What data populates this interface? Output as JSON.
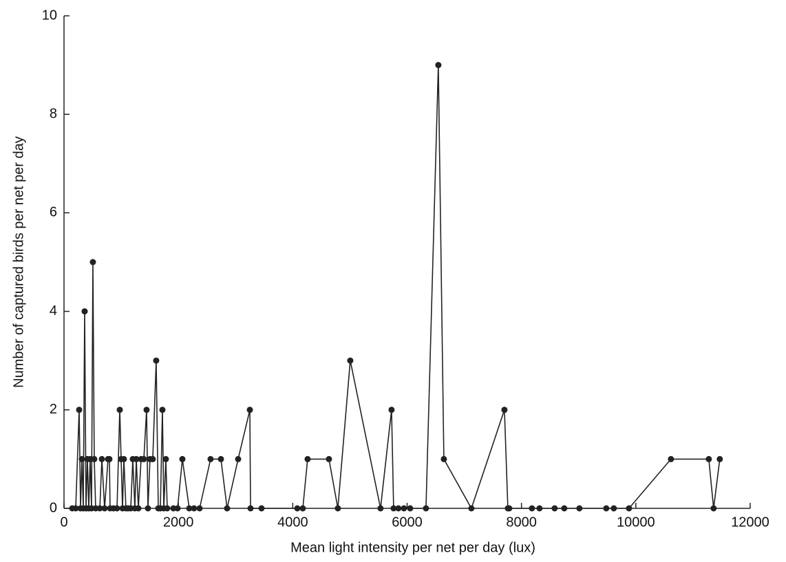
{
  "chart_data": {
    "type": "line",
    "x_label": "Mean light intensity per net per day (lux)",
    "y_label": "Number of captured birds per net per day",
    "x": [
      144,
      205,
      265,
      289,
      313,
      337,
      361,
      385,
      409,
      433,
      457,
      481,
      505,
      529,
      554,
      626,
      662,
      710,
      770,
      794,
      806,
      866,
      927,
      975,
      999,
      1023,
      1047,
      1083,
      1119,
      1167,
      1203,
      1239,
      1264,
      1300,
      1348,
      1396,
      1444,
      1468,
      1504,
      1552,
      1612,
      1649,
      1685,
      1721,
      1745,
      1781,
      1805,
      1913,
      1986,
      2070,
      2190,
      2274,
      2371,
      2563,
      2744,
      2852,
      3045,
      3250,
      3262,
      3454,
      4080,
      4176,
      4260,
      4633,
      4789,
      5006,
      5535,
      5728,
      5764,
      5848,
      5945,
      6053,
      6330,
      6546,
      6643,
      7124,
      7702,
      7762,
      7786,
      8183,
      8315,
      8580,
      8748,
      9013,
      9483,
      9615,
      9880,
      10614,
      11276,
      11360,
      11468
    ],
    "values": [
      0,
      0,
      2,
      0,
      1,
      0,
      4,
      0,
      1,
      0,
      1,
      0,
      5,
      1,
      0,
      0,
      1,
      0,
      1,
      1,
      0,
      0,
      0,
      2,
      1,
      0,
      1,
      0,
      0,
      0,
      1,
      0,
      1,
      0,
      1,
      1,
      2,
      0,
      1,
      1,
      3,
      0,
      0,
      2,
      0,
      1,
      0,
      0,
      0,
      1,
      0,
      0,
      0,
      1,
      1,
      0,
      1,
      2,
      0,
      0,
      0,
      0,
      1,
      1,
      0,
      3,
      0,
      2,
      0,
      0,
      0,
      0,
      0,
      9,
      1,
      0,
      2,
      0,
      0,
      0,
      0,
      0,
      0,
      0,
      0,
      0,
      0,
      1,
      1,
      0,
      1
    ],
    "color": "#222222",
    "xlim": [
      0,
      12000
    ],
    "xticks": [
      0,
      2000,
      4000,
      6000,
      8000,
      10000,
      12000
    ],
    "ylim": [
      0,
      10
    ],
    "yticks": [
      0,
      2,
      4,
      6,
      8,
      10
    ]
  }
}
